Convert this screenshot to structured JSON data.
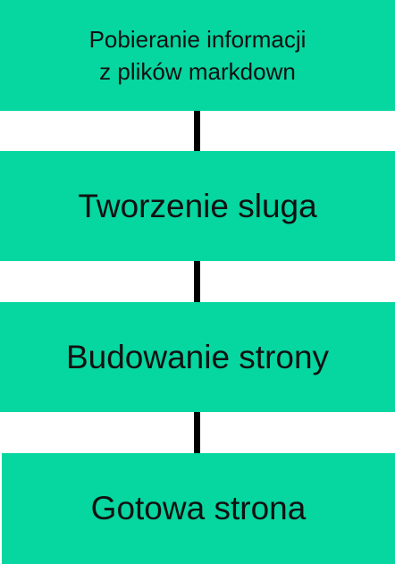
{
  "colors": {
    "box_fill": "#06D6A0",
    "connector": "#000000",
    "text": "#111111"
  },
  "steps": [
    {
      "label": "Pobieranie informacji\nz plików markdown"
    },
    {
      "label": "Tworzenie sluga"
    },
    {
      "label": "Budowanie strony"
    },
    {
      "label": "Gotowa strona"
    }
  ]
}
